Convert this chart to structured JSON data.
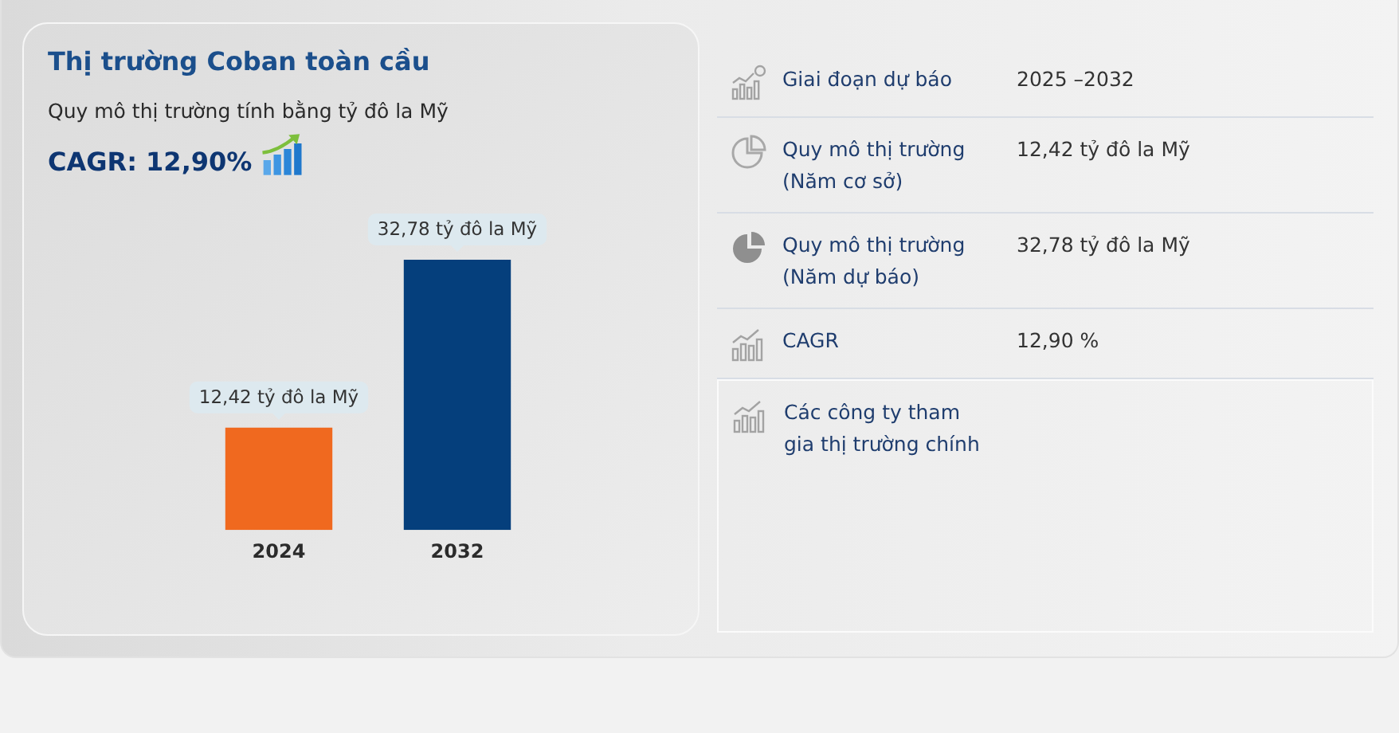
{
  "chart_data": [
    {
      "type": "bar",
      "title": "Thị trường Coban toàn cầu",
      "subtitle": "Quy mô thị trường tính bằng tỷ đô la Mỹ",
      "annotations": [
        "CAGR: 12,90%"
      ],
      "categories": [
        "2024",
        "2032"
      ],
      "values": [
        12.42,
        32.78
      ],
      "colors": [
        "#f0691f",
        "#053f7c"
      ],
      "value_labels": [
        "12,42 tỷ đô la Mỹ",
        "32,78 tỷ đô la Mỹ"
      ],
      "tick_labels": "x"
    },
    {
      "type": "other",
      "annotations": [
        "Giai đoạn dự báo",
        "2025 –2032",
        "Quy mô thị trường (Năm cơ sở)",
        "12,42 tỷ đô la Mỹ",
        "Quy mô thị trường (Năm dự báo)",
        "32,78 tỷ đô la Mỹ",
        "CAGR",
        "12,90 %",
        "Các công ty tham gia thị trường chính"
      ]
    }
  ]
}
